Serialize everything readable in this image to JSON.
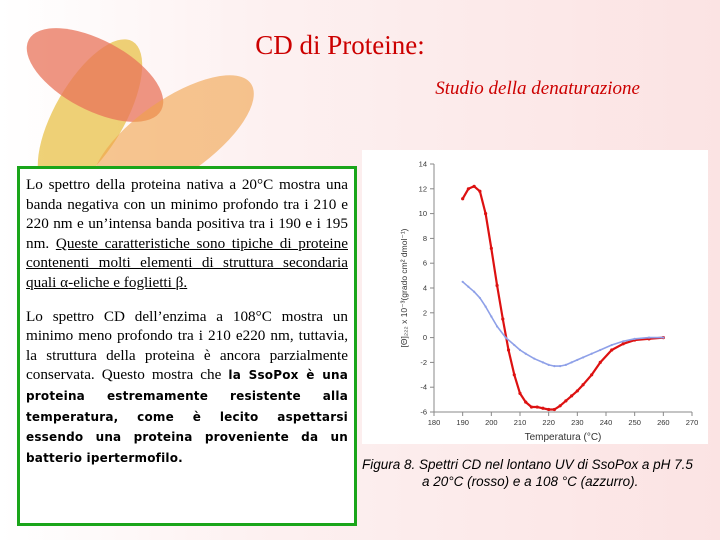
{
  "header": {
    "title": "CD di Proteine:",
    "subtitle": "Studio della denaturazione"
  },
  "text": {
    "p1_plain": "Lo spettro della proteina nativa a 20°C mostra una banda negativa con un minimo profondo tra i 210 e 220 nm e un’intensa banda positiva tra i 190 e i 195 nm.",
    "p1_underlined_a": "Queste caratteristiche sono tipiche di proteine contenenti molti elementi di struttura secondaria quali ",
    "alpha": "α",
    "p1_underlined_b": "-eliche e foglietti ",
    "beta": "β",
    "p1_underlined_end": ".",
    "p2_plain": "Lo spettro CD dell’enzima a 108°C mostra un minimo meno profondo tra i 210 e220 nm, tuttavia, la struttura della proteina è ancora parzialmente conservata. Questo mostra che ",
    "p2_bold": "la SsoPox è una proteina estremamente resistente alla temperatura, come è lecito aspettarsi essendo una proteina proveniente da un batterio ipertermofilo."
  },
  "figure": {
    "caption_line1": "Figura 8. Spettri CD nel lontano UV di SsoPox a pH 7.5",
    "caption_line2": "a 20°C (rosso) e a 108 °C (azzurro)."
  },
  "chart_data": {
    "type": "line",
    "xlabel": "Temperatura (°C)",
    "ylabel": "[Θ]₂₂₂ x 10⁻³(grado cm² dmol⁻¹)",
    "xlim": [
      180,
      270
    ],
    "ylim": [
      -6,
      14
    ],
    "xticks": [
      180,
      190,
      200,
      210,
      220,
      230,
      240,
      250,
      260,
      270
    ],
    "yticks": [
      -6,
      -4,
      -2,
      0,
      2,
      4,
      6,
      8,
      10,
      12,
      14
    ],
    "grid": false,
    "colors": {
      "red": "#dd1111",
      "blue": "#8ea0e8"
    },
    "series": [
      {
        "color": "red",
        "x": [
          190,
          192,
          194,
          196,
          198,
          200,
          202,
          204,
          206,
          208,
          210,
          212,
          214,
          216,
          218,
          220,
          222,
          224,
          226,
          228,
          230,
          232,
          235,
          238,
          242,
          246,
          250,
          255,
          260
        ],
        "y": [
          11.2,
          12.0,
          12.2,
          11.8,
          10.0,
          7.2,
          4.2,
          1.5,
          -1.0,
          -3.0,
          -4.5,
          -5.2,
          -5.6,
          -5.6,
          -5.7,
          -5.8,
          -5.8,
          -5.5,
          -5.1,
          -4.7,
          -4.3,
          -3.8,
          -3.0,
          -2.0,
          -1.0,
          -0.5,
          -0.2,
          -0.1,
          0.0
        ]
      },
      {
        "color": "blue",
        "x": [
          190,
          192,
          194,
          196,
          198,
          200,
          202,
          205,
          208,
          210,
          212,
          215,
          218,
          220,
          222,
          224,
          226,
          228,
          230,
          232,
          235,
          238,
          242,
          246,
          250,
          255,
          260
        ],
        "y": [
          4.5,
          4.1,
          3.7,
          3.2,
          2.5,
          1.7,
          0.9,
          0.0,
          -0.6,
          -1.0,
          -1.3,
          -1.7,
          -2.0,
          -2.2,
          -2.3,
          -2.3,
          -2.2,
          -2.0,
          -1.8,
          -1.6,
          -1.3,
          -1.0,
          -0.6,
          -0.3,
          -0.1,
          0.0,
          0.0
        ]
      }
    ]
  }
}
